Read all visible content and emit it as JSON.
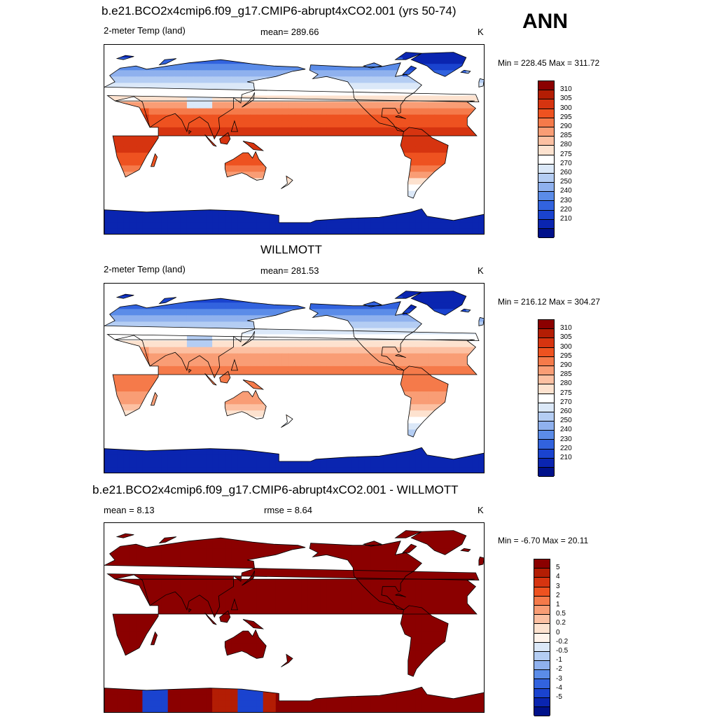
{
  "season": "ANN",
  "panels": [
    {
      "id": "model",
      "title": "b.e21.BCO2x4cmip6.f09_g17.CMIP6-abrupt4xCO2.001 (yrs 50-74)",
      "left_label": "2-meter Temp (land)",
      "center_label": "mean= 289.66",
      "units": "K",
      "minmax": "Min = 228.45 Max = 311.72",
      "scale": "abs",
      "bias": 0.0
    },
    {
      "id": "obs",
      "title": "WILLMOTT",
      "left_label": "2-meter Temp (land)",
      "center_label": "mean= 281.53",
      "units": "K",
      "minmax": "Min = 216.12 Max = 304.27",
      "scale": "abs",
      "bias": -1.0
    },
    {
      "id": "diff",
      "title": "b.e21.BCO2x4cmip6.f09_g17.CMIP6-abrupt4xCO2.001 - WILLMOTT",
      "left_label": "mean =   8.13",
      "center_label": "rmse =   8.64",
      "units": "K",
      "minmax": "Min =  -6.70 Max =  20.11",
      "scale": "diff",
      "bias": 0.0
    }
  ],
  "colorbars": {
    "abs": {
      "labels": [
        "310",
        "305",
        "300",
        "295",
        "290",
        "285",
        "280",
        "275",
        "270",
        "260",
        "250",
        "240",
        "230",
        "220",
        "210"
      ],
      "colors": [
        "#8b0000",
        "#b31d04",
        "#d63410",
        "#ee5220",
        "#f57a4a",
        "#f99d75",
        "#fcc0a2",
        "#fde2cf",
        "#ffffff",
        "#dbe8f8",
        "#b4cdf3",
        "#8fb1ee",
        "#5b8ce8",
        "#3263de",
        "#1a43cf",
        "#0a25b0",
        "#00118a"
      ]
    },
    "diff": {
      "labels": [
        "5",
        "4",
        "3",
        "2",
        "1",
        "0.5",
        "0.2",
        "0",
        "-0.2",
        "-0.5",
        "-1",
        "-2",
        "-3",
        "-4",
        "-5"
      ],
      "colors": [
        "#8b0000",
        "#b31d04",
        "#d63410",
        "#ee5220",
        "#f57a4a",
        "#f99d75",
        "#fcc0a2",
        "#fde2cf",
        "#fff4ec",
        "#dbe8f8",
        "#b4cdf3",
        "#8fb1ee",
        "#5b8ce8",
        "#3263de",
        "#1a43cf",
        "#0a25b0",
        "#00118a"
      ]
    }
  }
}
